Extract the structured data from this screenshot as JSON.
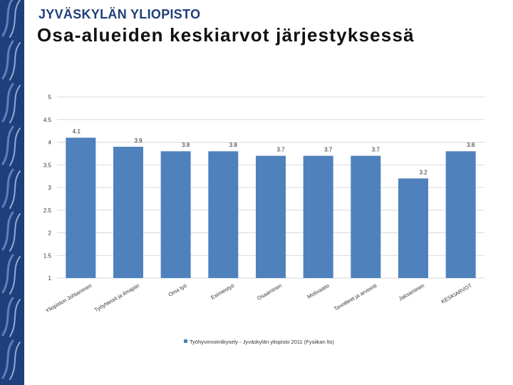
{
  "header": {
    "brand": "JYVÄSKYLÄN YLIOPISTO",
    "title": "Osa-alueiden keskiarvot järjestyksessä"
  },
  "colors": {
    "sidebar": "#1f3f7a",
    "bar": "#4f81bd",
    "grid": "#d9d9d9"
  },
  "chart_data": {
    "type": "bar",
    "categories": [
      "Yliopiston Johtaminen",
      "Työyhteisö ja ilmapiiri",
      "Oma työ",
      "Esimiestyö",
      "Osaaminen",
      "Motivaatio",
      "Tavoitteet ja arviointi",
      "Jaksaminen",
      "KESKIARVOT"
    ],
    "series": [
      {
        "name": "Työhyvinvointikysely - Jyväskylän yliopisto 2011 (Fysiikan lts)",
        "values": [
          4.1,
          3.9,
          3.8,
          3.8,
          3.7,
          3.7,
          3.7,
          3.2,
          3.8
        ]
      }
    ],
    "ylim": [
      1,
      5
    ],
    "yticks": [
      "1",
      "1.5",
      "2",
      "2.5",
      "3",
      "3.5",
      "4",
      "4.5",
      "5"
    ],
    "grid": true,
    "legend_position": "bottom"
  }
}
